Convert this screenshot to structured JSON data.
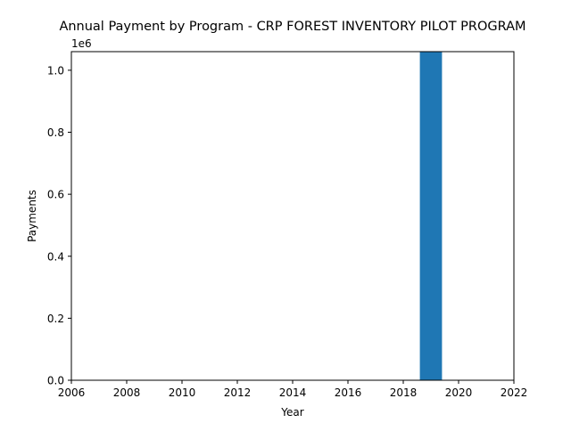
{
  "chart_data": {
    "type": "bar",
    "title": "Annual Payment by Program - CRP FOREST INVENTORY PILOT PROGRAM",
    "xlabel": "Year",
    "ylabel": "Payments",
    "y_offset_label": "1e6",
    "x": [
      2019
    ],
    "values": [
      1060000
    ],
    "xlim": [
      2006,
      2022
    ],
    "ylim": [
      0,
      1060000
    ],
    "x_ticks": [
      "2006",
      "2008",
      "2010",
      "2012",
      "2014",
      "2016",
      "2018",
      "2020",
      "2022"
    ],
    "y_ticks": [
      "0.0",
      "0.2",
      "0.4",
      "0.6",
      "0.8",
      "1.0"
    ],
    "grid": false,
    "bar_color": "#1f77b4"
  }
}
